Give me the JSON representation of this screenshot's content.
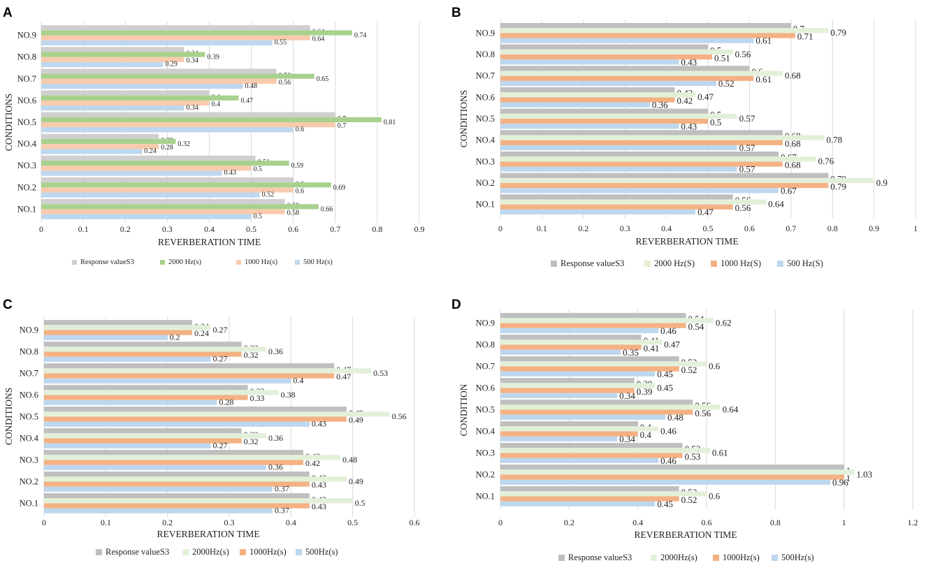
{
  "chart_data": [
    {
      "panel": "A",
      "type": "bar",
      "orientation": "horizontal",
      "xlabel": "REVERBERATION TIME",
      "ylabel": "CONDITIONS",
      "xlim": [
        0,
        0.9
      ],
      "xticks": [
        "0",
        "0.1",
        "0.2",
        "0.3",
        "0.4",
        "0.5",
        "0.6",
        "0.7",
        "0.8",
        "0.9"
      ],
      "grid": true,
      "legend_position": "bottom",
      "categories": [
        "NO.1",
        "NO.2",
        "NO.3",
        "NO.4",
        "NO.5",
        "NO.6",
        "NO.7",
        "NO.8",
        "NO.9"
      ],
      "series": [
        {
          "name": "Response valueS3",
          "color": "#cfcfcf",
          "values": [
            0.58,
            0.6,
            0.51,
            0.28,
            0.7,
            0.4,
            0.56,
            0.34,
            0.64
          ],
          "labels": [
            "0.58",
            "0.6",
            "0.51",
            "0.28",
            "0.7",
            "0.4",
            "0.56",
            "0.34",
            "0.64"
          ]
        },
        {
          "name": "2000 Hz(s)",
          "color": "#a9d18e",
          "values": [
            0.66,
            0.69,
            0.59,
            0.32,
            0.81,
            0.47,
            0.65,
            0.39,
            0.74
          ],
          "labels": [
            "0.66",
            "0.69",
            "0.59",
            "0.32",
            "0.81",
            "0.47",
            "0.65",
            "0.39",
            "0.74"
          ]
        },
        {
          "name": "1000 Hz(s)",
          "color": "#f8cbad",
          "values": [
            0.58,
            0.6,
            0.5,
            0.28,
            0.7,
            0.4,
            0.56,
            0.34,
            0.64
          ],
          "labels": [
            "0.58",
            "0.6",
            "0.5",
            "0.28",
            "0.7",
            "0.4",
            "0.56",
            "0.34",
            "0.64"
          ]
        },
        {
          "name": "500 Hz(s)",
          "color": "#bdd7ee",
          "values": [
            0.5,
            0.52,
            0.43,
            0.24,
            0.6,
            0.34,
            0.48,
            0.29,
            0.55
          ],
          "labels": [
            "0.5",
            "0.52",
            "0.43",
            "0.24",
            "0.6",
            "0.34",
            "0.48",
            "0.29",
            "0.55"
          ]
        }
      ]
    },
    {
      "panel": "B",
      "type": "bar",
      "orientation": "horizontal",
      "xlabel": "REVERBERATION TIME",
      "ylabel": "CONDITIONS",
      "xlim": [
        0,
        1
      ],
      "xticks": [
        "0",
        "0.1",
        "0.2",
        "0.3",
        "0.4",
        "0.5",
        "0.6",
        "0.7",
        "0.8",
        "0.9",
        "1"
      ],
      "grid": true,
      "legend_position": "bottom",
      "categories": [
        "NO.1",
        "NO.2",
        "NO.3",
        "NO.4",
        "NO.5",
        "NO.6",
        "NO.7",
        "NO.8",
        "NO.9"
      ],
      "series": [
        {
          "name": "Response valueS3",
          "color": "#bfbfbf",
          "values": [
            0.56,
            0.79,
            0.67,
            0.68,
            0.5,
            0.42,
            0.6,
            0.5,
            0.7
          ],
          "labels": [
            "0.56",
            "0.79",
            "0.67",
            "0.68",
            "0.5",
            "0.42",
            "0.6",
            "0.5",
            "0.7"
          ]
        },
        {
          "name": "2000 Hz(S)",
          "color": "#e2f0d9",
          "values": [
            0.64,
            0.9,
            0.76,
            0.78,
            0.57,
            0.47,
            0.68,
            0.56,
            0.79
          ],
          "labels": [
            "0.64",
            "0.9",
            "0.76",
            "0.78",
            "0.57",
            "0.47",
            "0.68",
            "0.56",
            "0.79"
          ]
        },
        {
          "name": "1000 Hz(S)",
          "color": "#f4b183",
          "values": [
            0.56,
            0.79,
            0.68,
            0.68,
            0.5,
            0.42,
            0.61,
            0.51,
            0.71
          ],
          "labels": [
            "0.56",
            "0.79",
            "0.68",
            "0.68",
            "0.5",
            "0.42",
            "0.61",
            "0.51",
            "0.71"
          ]
        },
        {
          "name": "500 Hz(S)",
          "color": "#bdd7ee",
          "values": [
            0.47,
            0.67,
            0.57,
            0.57,
            0.43,
            0.36,
            0.52,
            0.43,
            0.61
          ],
          "labels": [
            "0.47",
            "0.67",
            "0.57",
            "0.57",
            "0.43",
            "0.36",
            "0.52",
            "0.43",
            "0.61"
          ]
        }
      ]
    },
    {
      "panel": "C",
      "type": "bar",
      "orientation": "horizontal",
      "xlabel": "REVERBERATION TIME",
      "ylabel": "CONDITIONS",
      "xlim": [
        0,
        0.6
      ],
      "xticks": [
        "0",
        "0.1",
        "0.2",
        "0.3",
        "0.4",
        "0.5",
        "0.6"
      ],
      "grid": true,
      "legend_position": "bottom",
      "categories": [
        "NO.1",
        "NO.2",
        "NO.3",
        "NO.4",
        "NO.5",
        "NO.6",
        "NO.7",
        "NO.8",
        "NO.9"
      ],
      "series": [
        {
          "name": "Response valueS3",
          "color": "#bfbfbf",
          "values": [
            0.43,
            0.43,
            0.42,
            0.32,
            0.49,
            0.33,
            0.47,
            0.32,
            0.24
          ],
          "labels": [
            "0.43",
            "0.43",
            "0.42",
            "0.32",
            "0.49",
            "0.33",
            "0.47",
            "0.32",
            "0.24"
          ]
        },
        {
          "name": "2000Hz(s)",
          "color": "#e2f0d9",
          "values": [
            0.5,
            0.49,
            0.48,
            0.36,
            0.56,
            0.38,
            0.53,
            0.36,
            0.27
          ],
          "labels": [
            "0.5",
            "0.49",
            "0.48",
            "0.36",
            "0.56",
            "0.38",
            "0.53",
            "0.36",
            "0.27"
          ]
        },
        {
          "name": "1000Hz(s)",
          "color": "#f4b183",
          "values": [
            0.43,
            0.43,
            0.42,
            0.32,
            0.49,
            0.33,
            0.47,
            0.32,
            0.24
          ],
          "labels": [
            "0.43",
            "0.43",
            "0.42",
            "0.32",
            "0.49",
            "0.33",
            "0.47",
            "0.32",
            "0.24"
          ]
        },
        {
          "name": "500Hz(s)",
          "color": "#bdd7ee",
          "values": [
            0.37,
            0.37,
            0.36,
            0.27,
            0.43,
            0.28,
            0.4,
            0.27,
            0.2
          ],
          "labels": [
            "0.37",
            "0.37",
            "0.36",
            "0.27",
            "0.43",
            "0.28",
            "0.4",
            "0.27",
            "0.2"
          ]
        }
      ]
    },
    {
      "panel": "D",
      "type": "bar",
      "orientation": "horizontal",
      "xlabel": "REVERBERATION TIME",
      "ylabel": "CONDITION",
      "xlim": [
        0,
        1.2
      ],
      "xticks": [
        "0",
        "0.2",
        "0.4",
        "0.6",
        "0.8",
        "1",
        "1.2"
      ],
      "grid": true,
      "legend_position": "bottom",
      "categories": [
        "NO.1",
        "NO.2",
        "NO.3",
        "NO.4",
        "NO.5",
        "NO.6",
        "NO.7",
        "NO.8",
        "NO.9"
      ],
      "series": [
        {
          "name": "Response valueS3",
          "color": "#bfbfbf",
          "values": [
            0.52,
            1,
            0.53,
            0.4,
            0.56,
            0.39,
            0.52,
            0.41,
            0.54
          ],
          "labels": [
            "0.52",
            "1",
            "0.53",
            "0.4",
            "0.56",
            "0.39",
            "0.52",
            "0.41",
            "0.54"
          ]
        },
        {
          "name": "2000Hz(s)",
          "color": "#e2f0d9",
          "values": [
            0.6,
            1.03,
            0.61,
            0.46,
            0.64,
            0.45,
            0.6,
            0.47,
            0.62
          ],
          "labels": [
            "0.6",
            "1.03",
            "0.61",
            "0.46",
            "0.64",
            "0.45",
            "0.6",
            "0.47",
            "0.62"
          ]
        },
        {
          "name": "1000Hz(s)",
          "color": "#f4b183",
          "values": [
            0.52,
            1,
            0.53,
            0.4,
            0.56,
            0.39,
            0.52,
            0.41,
            0.54
          ],
          "labels": [
            "0.52",
            "1",
            "0.53",
            "0.4",
            "0.56",
            "0.39",
            "0.52",
            "0.41",
            "0.54"
          ]
        },
        {
          "name": "500Hz(s)",
          "color": "#bdd7ee",
          "values": [
            0.45,
            0.96,
            0.46,
            0.34,
            0.48,
            0.34,
            0.45,
            0.35,
            0.46
          ],
          "labels": [
            "0.45",
            "0.96",
            "0.46",
            "0.34",
            "0.48",
            "0.34",
            "0.45",
            "0.35",
            "0.46"
          ]
        }
      ]
    }
  ]
}
